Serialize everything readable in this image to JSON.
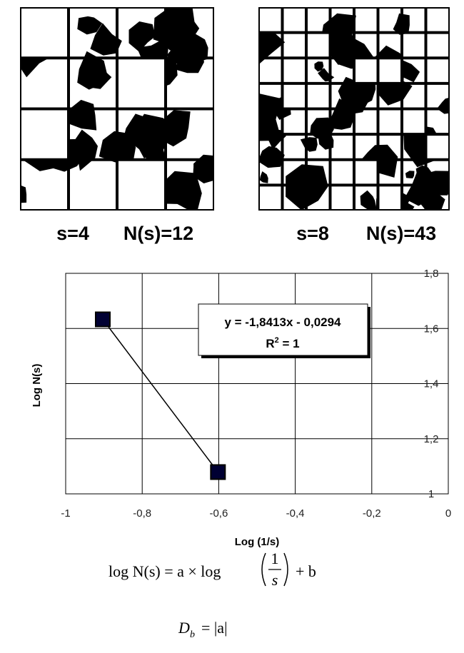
{
  "panels": [
    {
      "scale": "s=4",
      "count": "N(s)=12"
    },
    {
      "scale": "s=8",
      "count": "N(s)=43"
    }
  ],
  "chart_data": {
    "type": "line",
    "x": [
      -0.903,
      -0.602
    ],
    "values": [
      1.633,
      1.079
    ],
    "color": "#000033",
    "xlim": [
      -1,
      0
    ],
    "xticks": [
      -1,
      {
        "value": -0.8,
        "label": "-0,8"
      },
      {
        "value": -0.6,
        "label": "-0,6"
      },
      {
        "value": -0.4,
        "label": "-0,4"
      },
      {
        "value": -0.2,
        "label": "-0,2"
      },
      0
    ],
    "ylim": [
      1,
      1.8
    ],
    "yticks": [
      1,
      {
        "value": 1.2,
        "label": "1,2"
      },
      {
        "value": 1.4,
        "label": "1,4"
      },
      {
        "value": 1.6,
        "label": "1,6"
      },
      {
        "value": 1.8,
        "label": "1,8"
      }
    ],
    "grid": true,
    "x_label": "Log (1/s)",
    "y_label": "Log N(s)",
    "trendline": {
      "equation": "y = -1,8413x - 0,0294",
      "r2_base": "R",
      "r2_sup": "2",
      "r2_rest": " = 1"
    }
  },
  "formula": {
    "lhs": "log N(s) = a × log",
    "numerator": "1",
    "denominator": "s",
    "rhs": "+ b"
  },
  "dimension": {
    "base": "D",
    "sub": "b",
    "rhs": "= |a|"
  }
}
